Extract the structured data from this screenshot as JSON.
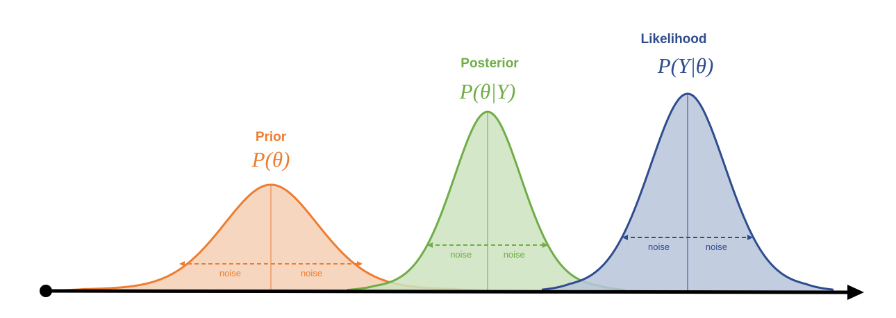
{
  "curves": [
    {
      "id": "prior",
      "title": "Prior",
      "formula": "P(θ)",
      "noise_left": "noise",
      "noise_right": "noise",
      "stroke": "#ED7D31",
      "fill": "#F5CFB3",
      "label_color": "#ED7D31"
    },
    {
      "id": "posterior",
      "title": "Posterior",
      "formula": "P(θ|Y)",
      "noise_left": "noise",
      "noise_right": "noise",
      "stroke": "#70AD47",
      "fill": "#CCE3BE",
      "label_color": "#70AD47"
    },
    {
      "id": "likelihood",
      "title": "Likelihood",
      "formula": "P(Y|θ)",
      "noise_left": "noise",
      "noise_right": "noise",
      "stroke": "#2F4C8F",
      "fill": "#B9C4DA",
      "label_color": "#2F4C8F"
    }
  ],
  "axis": {
    "color": "#000000"
  }
}
